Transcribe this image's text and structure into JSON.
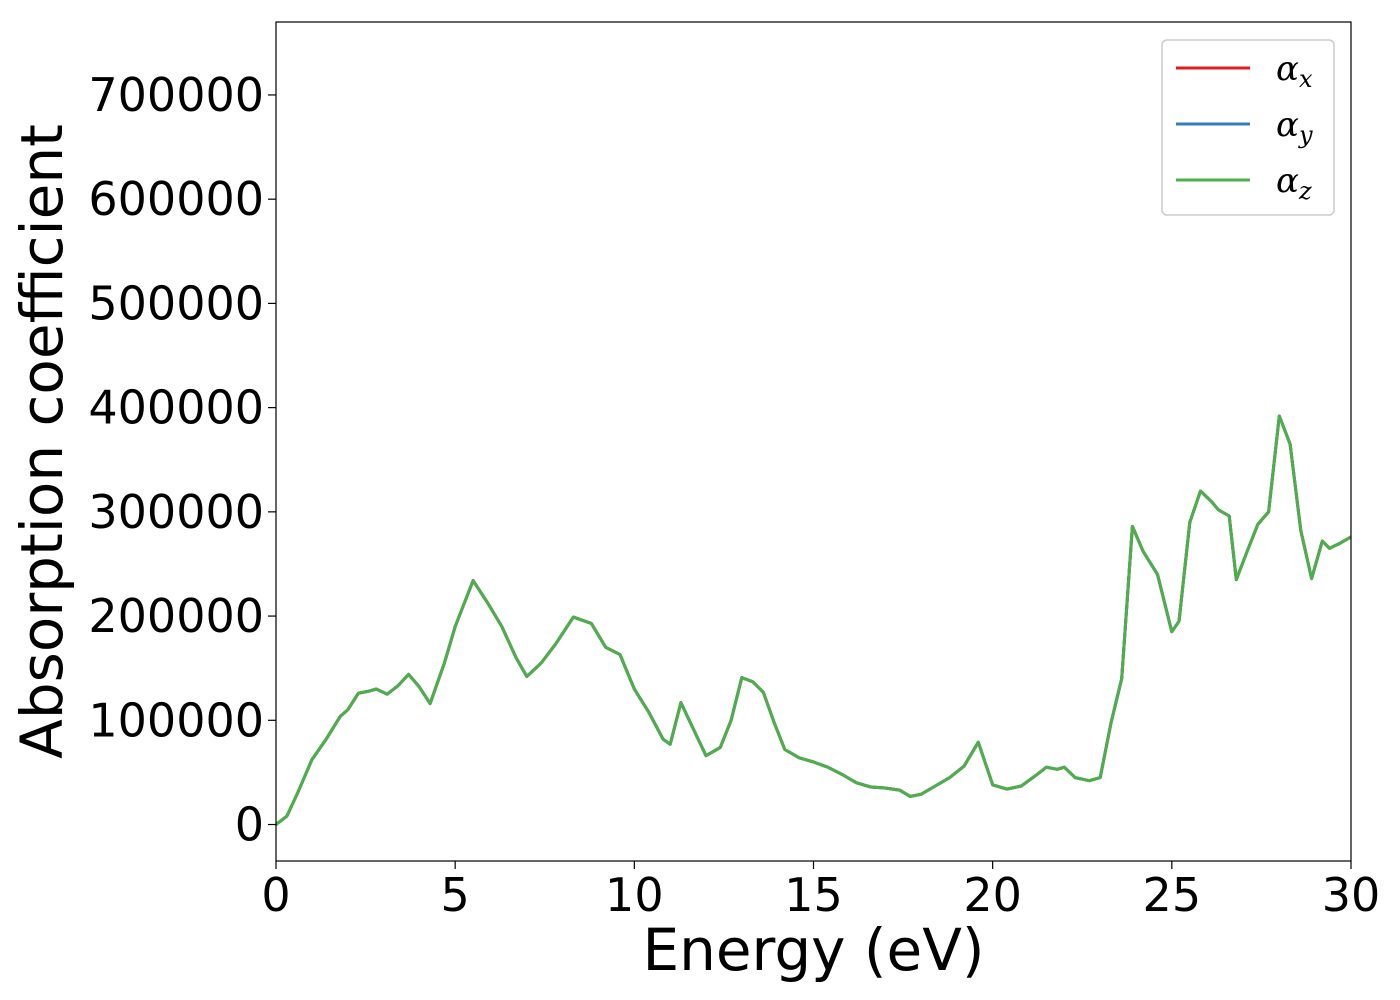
{
  "chart_data": {
    "type": "line",
    "xlabel": "Energy (eV)",
    "ylabel": "Absorption coefficient",
    "xlim": [
      0,
      30
    ],
    "ylim": [
      -35000,
      770000
    ],
    "xticks": [
      0,
      5,
      10,
      15,
      20,
      25,
      30
    ],
    "xtick_labels": [
      "0",
      "5",
      "10",
      "15",
      "20",
      "25",
      "30"
    ],
    "yticks": [
      0,
      100000,
      200000,
      300000,
      400000,
      500000,
      600000,
      700000
    ],
    "ytick_labels": [
      "0",
      "100000",
      "200000",
      "300000",
      "400000",
      "500000",
      "600000",
      "700000"
    ],
    "grid": false,
    "legend_position": "top-right",
    "legend": [
      {
        "symbol": "α",
        "subscript": "x",
        "color": "#e41a1c"
      },
      {
        "symbol": "α",
        "subscript": "y",
        "color": "#377eb8"
      },
      {
        "symbol": "α",
        "subscript": "z",
        "color": "#4daf4a"
      }
    ],
    "x": [
      0,
      0.3,
      0.6,
      1.0,
      1.4,
      1.8,
      2.0,
      2.3,
      2.6,
      2.8,
      3.1,
      3.4,
      3.7,
      4.0,
      4.3,
      4.7,
      5.0,
      5.5,
      5.9,
      6.3,
      6.7,
      7.0,
      7.4,
      7.8,
      8.3,
      8.8,
      9.2,
      9.6,
      10.0,
      10.4,
      10.8,
      11.0,
      11.3,
      11.6,
      12.0,
      12.4,
      12.7,
      13.0,
      13.3,
      13.6,
      13.9,
      14.2,
      14.6,
      15.0,
      15.4,
      15.8,
      16.2,
      16.6,
      17.0,
      17.4,
      17.7,
      18.0,
      18.4,
      18.8,
      19.2,
      19.6,
      20.0,
      20.4,
      20.8,
      21.2,
      21.5,
      21.8,
      22.0,
      22.3,
      22.7,
      23.0,
      23.3,
      23.6,
      23.9,
      24.2,
      24.6,
      25.0,
      25.2,
      25.5,
      25.8,
      26.1,
      26.3,
      26.6,
      26.8,
      27.1,
      27.4,
      27.7,
      28.0,
      28.3,
      28.6,
      28.9,
      29.2,
      29.4,
      29.7,
      30.0
    ],
    "series": [
      {
        "name": "α_x",
        "color": "#e41a1c",
        "values": [
          0,
          8000,
          30000,
          62000,
          82000,
          104000,
          110000,
          126000,
          128000,
          130000,
          125000,
          133000,
          144000,
          132000,
          116000,
          155000,
          190000,
          234000,
          213000,
          190000,
          160000,
          142000,
          155000,
          173000,
          199000,
          193000,
          170000,
          163000,
          130000,
          108000,
          82000,
          77000,
          117000,
          95000,
          66000,
          74000,
          100000,
          141000,
          137000,
          127000,
          98000,
          72000,
          64000,
          60000,
          55000,
          48000,
          40000,
          36000,
          35000,
          33000,
          27000,
          29000,
          37000,
          45000,
          56000,
          79000,
          38000,
          34000,
          37000,
          47000,
          55000,
          53000,
          55000,
          45000,
          42000,
          45000,
          97000,
          140000,
          286000,
          262000,
          240000,
          185000,
          195000,
          290000,
          320000,
          310000,
          302000,
          296000,
          235000,
          262000,
          288000,
          300000,
          392000,
          365000,
          282000,
          236000,
          272000,
          265000,
          270000,
          276000
        ]
      },
      {
        "name": "α_y",
        "color": "#377eb8",
        "values": [
          0,
          8000,
          30000,
          62000,
          82000,
          104000,
          110000,
          126000,
          128000,
          130000,
          125000,
          133000,
          144000,
          132000,
          116000,
          155000,
          190000,
          234000,
          213000,
          190000,
          160000,
          142000,
          155000,
          173000,
          199000,
          193000,
          170000,
          163000,
          130000,
          108000,
          82000,
          77000,
          117000,
          95000,
          66000,
          74000,
          100000,
          141000,
          137000,
          127000,
          98000,
          72000,
          64000,
          60000,
          55000,
          48000,
          40000,
          36000,
          35000,
          33000,
          27000,
          29000,
          37000,
          45000,
          56000,
          79000,
          38000,
          34000,
          37000,
          47000,
          55000,
          53000,
          55000,
          45000,
          42000,
          45000,
          97000,
          140000,
          286000,
          262000,
          240000,
          185000,
          195000,
          290000,
          320000,
          310000,
          302000,
          296000,
          235000,
          262000,
          288000,
          300000,
          392000,
          365000,
          282000,
          236000,
          272000,
          265000,
          270000,
          276000
        ]
      },
      {
        "name": "α_z",
        "color": "#4daf4a",
        "values": [
          0,
          8000,
          30000,
          62000,
          82000,
          104000,
          110000,
          126000,
          128000,
          130000,
          125000,
          133000,
          144000,
          132000,
          116000,
          155000,
          190000,
          234000,
          213000,
          190000,
          160000,
          142000,
          155000,
          173000,
          199000,
          193000,
          170000,
          163000,
          130000,
          108000,
          82000,
          77000,
          117000,
          95000,
          66000,
          74000,
          100000,
          141000,
          137000,
          127000,
          98000,
          72000,
          64000,
          60000,
          55000,
          48000,
          40000,
          36000,
          35000,
          33000,
          27000,
          29000,
          37000,
          45000,
          56000,
          79000,
          38000,
          34000,
          37000,
          47000,
          55000,
          53000,
          55000,
          45000,
          42000,
          45000,
          97000,
          140000,
          286000,
          262000,
          240000,
          185000,
          195000,
          290000,
          320000,
          310000,
          302000,
          296000,
          235000,
          262000,
          288000,
          300000,
          392000,
          365000,
          282000,
          236000,
          272000,
          265000,
          270000,
          276000
        ]
      }
    ]
  }
}
